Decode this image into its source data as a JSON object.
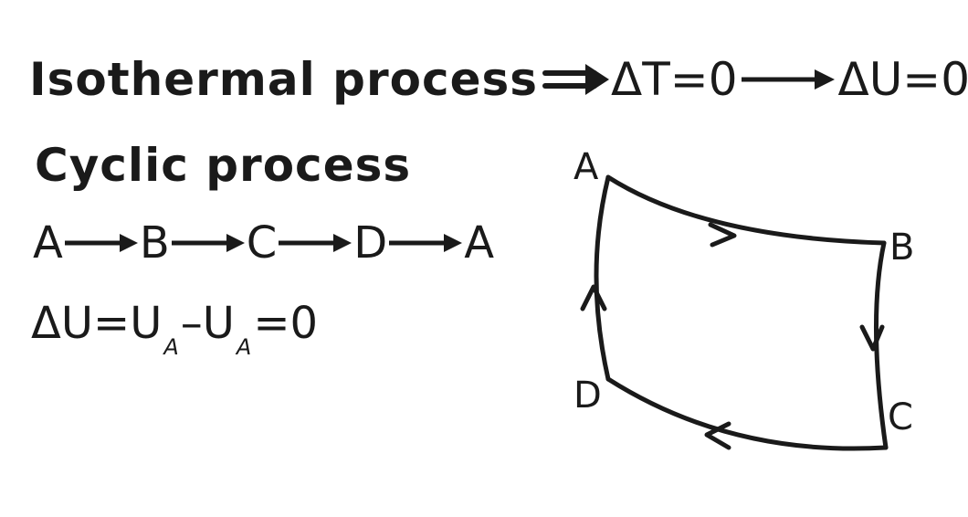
{
  "isothermal": {
    "label": "Isothermal process",
    "implies_symbol": "⇒",
    "condition": "ΔT=0",
    "result": "ΔU=0"
  },
  "cyclic": {
    "title": "Cyclic process",
    "sequence": [
      "A",
      "B",
      "C",
      "D",
      "A"
    ],
    "energy": {
      "lhs": "ΔU=U",
      "sub1": "A",
      "mid": "–U",
      "sub2": "A",
      "rhs": "=0"
    }
  },
  "diagram": {
    "vertices": [
      "A",
      "B",
      "C",
      "D"
    ]
  },
  "colors": {
    "ink": "#1a1a1a",
    "background": "#ffffff"
  }
}
